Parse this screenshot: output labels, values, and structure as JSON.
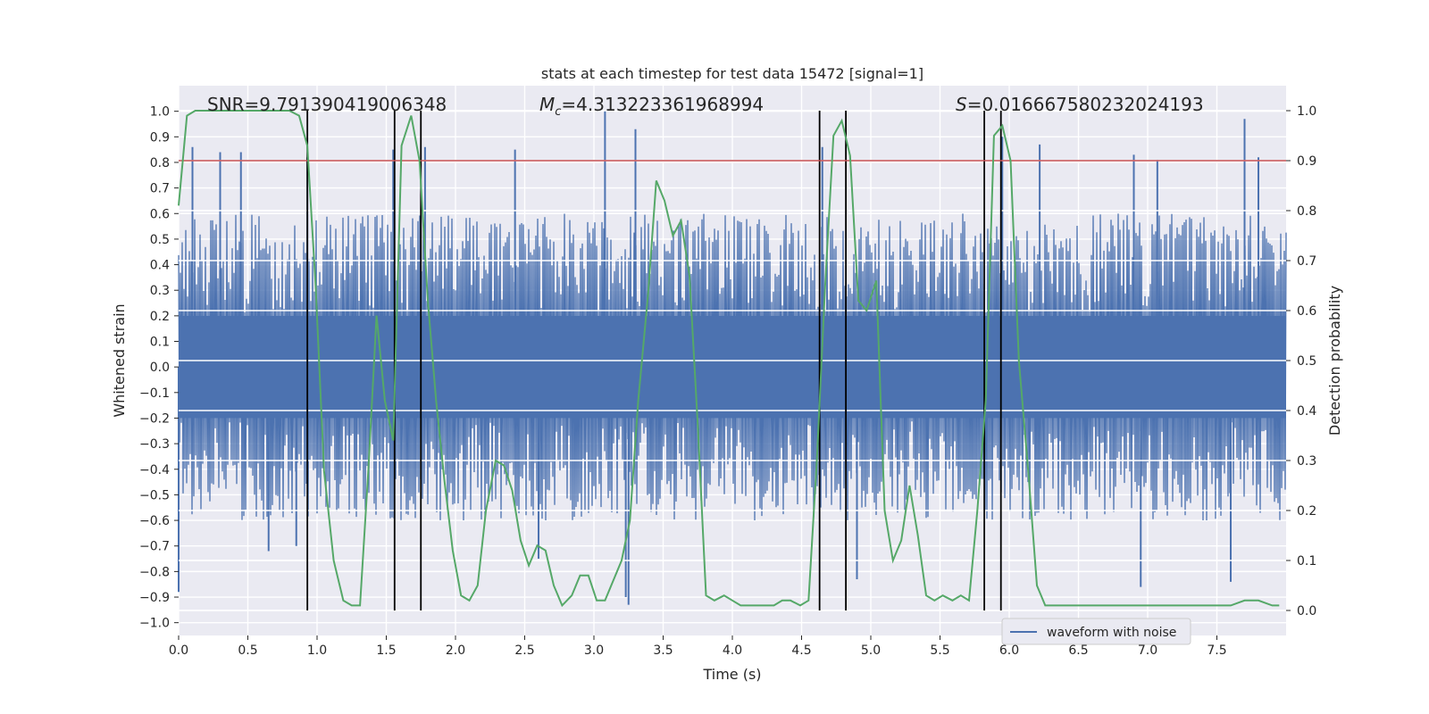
{
  "chart_data": {
    "type": "line",
    "title": "stats at each timestep for test data 15472 [signal=1]",
    "xlabel": "Time (s)",
    "ylabel": "Whitened strain",
    "y2label": "Detection probability",
    "xlim": [
      0.0,
      8.0
    ],
    "ylim": [
      -1.05,
      1.1
    ],
    "y2lim": [
      -0.05,
      1.05
    ],
    "x_ticks": [
      "0.0",
      "0.5",
      "1.0",
      "1.5",
      "2.0",
      "2.5",
      "3.0",
      "3.5",
      "4.0",
      "4.5",
      "5.0",
      "5.5",
      "6.0",
      "6.5",
      "7.0",
      "7.5"
    ],
    "y_ticks": [
      "1.0",
      "0.9",
      "0.8",
      "0.7",
      "0.6",
      "0.5",
      "0.4",
      "0.3",
      "0.2",
      "0.1",
      "0.0",
      "−0.1",
      "−0.2",
      "−0.3",
      "−0.4",
      "−0.5",
      "−0.6",
      "−0.7",
      "−0.8",
      "−0.9",
      "−1.0"
    ],
    "y2_ticks": [
      "1.0",
      "0.9",
      "0.8",
      "0.7",
      "0.6",
      "0.5",
      "0.4",
      "0.3",
      "0.2",
      "0.1",
      "0.0"
    ],
    "annotations": {
      "snr": "SNR=9.791390419006348",
      "mc_symbol": "M",
      "mc_sub": "c",
      "mc_value": "=4.313223361968994",
      "s_symbol": "S",
      "s_value": "=0.016667580232024193"
    },
    "threshold_probability": 0.9,
    "vertical_lines_s": [
      0.93,
      1.56,
      1.75,
      4.63,
      4.82,
      5.82,
      5.94
    ],
    "series": [
      {
        "name": "waveform with noise",
        "kind": "noise-waveform",
        "envelope_high": 0.6,
        "envelope_low": -0.6,
        "peaks": [
          {
            "t": 0.1,
            "v": 0.86
          },
          {
            "t": 0.3,
            "v": 0.84
          },
          {
            "t": 0.45,
            "v": 0.84
          },
          {
            "t": 0.93,
            "v": 0.82
          },
          {
            "t": 1.55,
            "v": 0.85
          },
          {
            "t": 1.78,
            "v": 0.86
          },
          {
            "t": 2.43,
            "v": 0.85
          },
          {
            "t": 3.08,
            "v": 1.0
          },
          {
            "t": 3.3,
            "v": 0.93
          },
          {
            "t": 4.65,
            "v": 0.86
          },
          {
            "t": 5.95,
            "v": 0.9
          },
          {
            "t": 6.22,
            "v": 0.87
          },
          {
            "t": 6.9,
            "v": 0.83
          },
          {
            "t": 7.07,
            "v": 0.81
          },
          {
            "t": 7.7,
            "v": 0.97
          },
          {
            "t": 7.8,
            "v": 0.82
          }
        ],
        "troughs": [
          {
            "t": 0.0,
            "v": -0.88
          },
          {
            "t": 0.65,
            "v": -0.72
          },
          {
            "t": 0.85,
            "v": -0.7
          },
          {
            "t": 2.6,
            "v": -0.75
          },
          {
            "t": 3.23,
            "v": -0.9
          },
          {
            "t": 3.25,
            "v": -0.93
          },
          {
            "t": 4.9,
            "v": -0.83
          },
          {
            "t": 6.95,
            "v": -0.86
          },
          {
            "t": 7.6,
            "v": -0.84
          }
        ],
        "color": "#4c72b0"
      },
      {
        "name": "detection probability",
        "kind": "probability",
        "x": [
          0.0,
          0.06,
          0.12,
          0.2,
          0.3,
          0.4,
          0.5,
          0.6,
          0.7,
          0.8,
          0.87,
          0.93,
          0.99,
          1.05,
          1.12,
          1.19,
          1.25,
          1.31,
          1.37,
          1.43,
          1.49,
          1.55,
          1.61,
          1.68,
          1.74,
          1.8,
          1.86,
          1.92,
          1.98,
          2.04,
          2.1,
          2.16,
          2.22,
          2.29,
          2.35,
          2.41,
          2.47,
          2.53,
          2.59,
          2.65,
          2.71,
          2.77,
          2.84,
          2.9,
          2.96,
          3.02,
          3.08,
          3.14,
          3.2,
          3.26,
          3.32,
          3.39,
          3.45,
          3.51,
          3.57,
          3.63,
          3.69,
          3.75,
          3.81,
          3.87,
          3.94,
          4.0,
          4.06,
          4.12,
          4.18,
          4.24,
          4.3,
          4.36,
          4.42,
          4.49,
          4.55,
          4.61,
          4.67,
          4.73,
          4.79,
          4.85,
          4.91,
          4.97,
          5.04,
          5.1,
          5.16,
          5.22,
          5.28,
          5.34,
          5.4,
          5.46,
          5.52,
          5.59,
          5.65,
          5.71,
          5.77,
          5.83,
          5.89,
          5.95,
          6.01,
          6.07,
          6.14,
          6.2,
          6.26,
          6.5,
          7.0,
          7.5,
          7.6,
          7.7,
          7.8,
          7.9,
          7.95
        ],
        "y": [
          0.81,
          0.99,
          1.0,
          1.0,
          1.0,
          1.0,
          1.0,
          1.0,
          1.0,
          1.0,
          0.99,
          0.93,
          0.65,
          0.28,
          0.1,
          0.02,
          0.01,
          0.01,
          0.28,
          0.59,
          0.42,
          0.34,
          0.93,
          0.99,
          0.9,
          0.62,
          0.42,
          0.26,
          0.12,
          0.03,
          0.02,
          0.05,
          0.2,
          0.3,
          0.29,
          0.24,
          0.14,
          0.09,
          0.13,
          0.12,
          0.05,
          0.01,
          0.03,
          0.07,
          0.07,
          0.02,
          0.02,
          0.06,
          0.1,
          0.18,
          0.42,
          0.63,
          0.86,
          0.82,
          0.75,
          0.78,
          0.67,
          0.37,
          0.03,
          0.02,
          0.03,
          0.02,
          0.01,
          0.01,
          0.01,
          0.01,
          0.01,
          0.02,
          0.02,
          0.01,
          0.02,
          0.3,
          0.65,
          0.95,
          0.98,
          0.91,
          0.62,
          0.6,
          0.66,
          0.2,
          0.1,
          0.14,
          0.25,
          0.15,
          0.03,
          0.02,
          0.03,
          0.02,
          0.03,
          0.02,
          0.2,
          0.42,
          0.95,
          0.97,
          0.9,
          0.5,
          0.27,
          0.05,
          0.01,
          0.01,
          0.01,
          0.01,
          0.01,
          0.02,
          0.02,
          0.01,
          0.01
        ],
        "color": "#55a868"
      }
    ],
    "legend": {
      "label": "waveform with noise",
      "placement": "lower-right"
    }
  }
}
